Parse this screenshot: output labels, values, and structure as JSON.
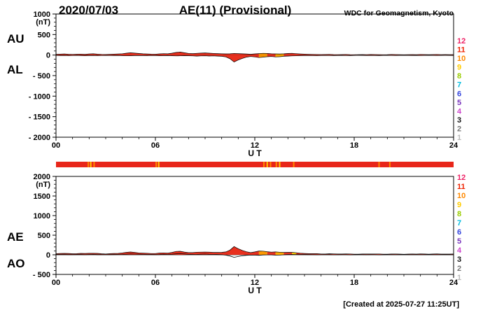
{
  "header": {
    "date": "2020/07/03",
    "title": "AE(11) (Provisional)",
    "source": "WDC for Geomagnetism, Kyoto"
  },
  "footer": {
    "created_note": "[Created at 2025-07-27 11:25UT]"
  },
  "legend": {
    "items": [
      {
        "label": "12",
        "color": "#ee2266"
      },
      {
        "label": "11",
        "color": "#ee2200"
      },
      {
        "label": "10",
        "color": "#ff8800"
      },
      {
        "label": "9",
        "color": "#ffcc00"
      },
      {
        "label": "8",
        "color": "#99cc00"
      },
      {
        "label": "7",
        "color": "#00bbdd"
      },
      {
        "label": "6",
        "color": "#3344dd"
      },
      {
        "label": "5",
        "color": "#7733bb"
      },
      {
        "label": "4",
        "color": "#cc44cc"
      },
      {
        "label": "3",
        "color": "#111111"
      },
      {
        "label": "2",
        "color": "#777777"
      },
      {
        "label": "1",
        "color": "#bbbbbb"
      }
    ]
  },
  "availability_bar": {
    "base_color": "#e8261a",
    "marks": [
      {
        "hour": 1.95,
        "color": "#ff8800"
      },
      {
        "hour": 2.1,
        "color": "#ffcc00"
      },
      {
        "hour": 2.3,
        "color": "#ff8800"
      },
      {
        "hour": 6.05,
        "color": "#ff8800"
      },
      {
        "hour": 6.2,
        "color": "#ffcc00"
      },
      {
        "hour": 12.55,
        "color": "#ff8800"
      },
      {
        "hour": 12.75,
        "color": "#ffcc00"
      },
      {
        "hour": 12.95,
        "color": "#ff8800"
      },
      {
        "hour": 13.3,
        "color": "#ff8800"
      },
      {
        "hour": 13.5,
        "color": "#ffcc00"
      },
      {
        "hour": 14.35,
        "color": "#ff8800"
      },
      {
        "hour": 19.5,
        "color": "#ff8800"
      },
      {
        "hour": 20.15,
        "color": "#ff8800"
      }
    ]
  },
  "chart_data": [
    {
      "id": "top-panel",
      "type": "area",
      "left_labels": [
        "AU",
        "AL"
      ],
      "unit": "(nT)",
      "ylim": [
        -2000,
        1000
      ],
      "y_major_step": 500,
      "y_minor_step": 100,
      "yticks": [
        {
          "v": 1000,
          "label": "1000"
        },
        {
          "v": 500,
          "label": "500"
        },
        {
          "v": 0,
          "label": "0"
        },
        {
          "v": -500,
          "label": "- 500"
        },
        {
          "v": -1000,
          "label": "- 1000"
        },
        {
          "v": -1500,
          "label": "- 1500"
        },
        {
          "v": -2000,
          "label": "- 2000"
        }
      ],
      "xlim": [
        0,
        24
      ],
      "xticks": [
        {
          "v": 0,
          "label": "00"
        },
        {
          "v": 6,
          "label": "06"
        },
        {
          "v": 12,
          "label": "12"
        },
        {
          "v": 18,
          "label": "18"
        },
        {
          "v": 24,
          "label": "24"
        }
      ],
      "xlabel": "U T",
      "x_step_hours": 0.25,
      "fill_segments": [
        {
          "from": 12.1,
          "to": 12.7,
          "color": "#ff9900"
        },
        {
          "from": 13.2,
          "to": 13.6,
          "color": "#ffaa00"
        }
      ],
      "series": [
        {
          "name": "AU",
          "type": "area",
          "color": "#e8301e",
          "values": [
            18,
            22,
            26,
            20,
            16,
            20,
            24,
            18,
            26,
            30,
            22,
            16,
            14,
            18,
            22,
            26,
            32,
            45,
            55,
            48,
            38,
            30,
            26,
            22,
            20,
            28,
            34,
            30,
            45,
            65,
            72,
            55,
            40,
            36,
            42,
            48,
            52,
            46,
            40,
            36,
            32,
            28,
            30,
            40,
            35,
            30,
            26,
            20,
            28,
            36,
            42,
            38,
            32,
            28,
            26,
            30,
            38,
            42,
            34,
            26,
            22,
            18,
            16,
            14,
            12,
            14,
            16,
            12,
            10,
            12,
            14,
            10,
            8,
            10,
            12,
            10,
            14,
            12,
            10,
            8,
            10,
            14,
            12,
            10,
            8,
            10,
            12,
            10,
            14,
            12,
            10,
            12,
            14,
            10,
            12,
            10,
            12
          ]
        },
        {
          "name": "AL",
          "type": "area",
          "color": "#e8301e",
          "values": [
            -8,
            -12,
            -10,
            -14,
            -10,
            -8,
            -12,
            -16,
            -12,
            -10,
            -14,
            -10,
            -8,
            -10,
            -12,
            -10,
            -14,
            -18,
            -16,
            -12,
            -10,
            -12,
            -14,
            -10,
            -12,
            -16,
            -14,
            -12,
            -16,
            -20,
            -18,
            -14,
            -16,
            -20,
            -24,
            -20,
            -18,
            -22,
            -20,
            -24,
            -30,
            -45,
            -90,
            -170,
            -120,
            -80,
            -50,
            -35,
            -45,
            -60,
            -50,
            -40,
            -35,
            -45,
            -40,
            -30,
            -25,
            -20,
            -18,
            -15,
            -12,
            -10,
            -12,
            -14,
            -10,
            -8,
            -10,
            -12,
            -10,
            -8,
            -10,
            -12,
            -8,
            -6,
            -8,
            -10,
            -8,
            -10,
            -12,
            -8,
            -6,
            -8,
            -10,
            -8,
            -6,
            -8,
            -10,
            -8,
            -10,
            -8,
            -6,
            -8,
            -10,
            -8,
            -6,
            -8,
            -10
          ]
        }
      ]
    },
    {
      "id": "bottom-panel",
      "type": "area",
      "left_labels": [
        "AE",
        "AO"
      ],
      "unit": "(nT)",
      "ylim": [
        -500,
        2000
      ],
      "y_major_step": 500,
      "y_minor_step": 100,
      "yticks": [
        {
          "v": 2000,
          "label": "2000"
        },
        {
          "v": 1500,
          "label": "1500"
        },
        {
          "v": 1000,
          "label": "1000"
        },
        {
          "v": 500,
          "label": "500"
        },
        {
          "v": 0,
          "label": "0"
        },
        {
          "v": -500,
          "label": "- 500"
        }
      ],
      "xlim": [
        0,
        24
      ],
      "xticks": [
        {
          "v": 0,
          "label": "00"
        },
        {
          "v": 6,
          "label": "06"
        },
        {
          "v": 12,
          "label": "12"
        },
        {
          "v": 18,
          "label": "18"
        },
        {
          "v": 24,
          "label": "24"
        }
      ],
      "xlabel": "U T",
      "x_step_hours": 0.25,
      "fill_segments": [
        {
          "from": 12.1,
          "to": 12.7,
          "color": "#ff9900"
        },
        {
          "from": 13.2,
          "to": 13.6,
          "color": "#ffaa00"
        },
        {
          "from": 14.2,
          "to": 14.5,
          "color": "#ffcc00"
        }
      ],
      "series": [
        {
          "name": "AE",
          "type": "area",
          "color": "#e8301e",
          "values": [
            26,
            34,
            36,
            34,
            26,
            28,
            36,
            34,
            38,
            40,
            36,
            26,
            22,
            28,
            34,
            36,
            46,
            63,
            71,
            60,
            48,
            42,
            40,
            32,
            32,
            44,
            48,
            42,
            61,
            85,
            90,
            69,
            56,
            56,
            66,
            68,
            70,
            68,
            60,
            60,
            62,
            73,
            120,
            210,
            155,
            110,
            76,
            55,
            73,
            96,
            92,
            78,
            67,
            73,
            66,
            60,
            63,
            62,
            52,
            41,
            34,
            28,
            28,
            28,
            22,
            22,
            26,
            24,
            20,
            20,
            24,
            22,
            16,
            16,
            20,
            20,
            22,
            22,
            22,
            16,
            16,
            22,
            22,
            18,
            14,
            18,
            22,
            18,
            24,
            20,
            16,
            20,
            24,
            18,
            18,
            18,
            22
          ]
        },
        {
          "name": "AO",
          "type": "line",
          "color": "#000000",
          "values": [
            5,
            5,
            8,
            3,
            3,
            6,
            6,
            1,
            7,
            10,
            4,
            3,
            3,
            4,
            5,
            8,
            9,
            14,
            20,
            18,
            14,
            9,
            6,
            6,
            4,
            6,
            10,
            9,
            15,
            23,
            27,
            21,
            12,
            8,
            9,
            14,
            17,
            12,
            10,
            6,
            1,
            -9,
            -30,
            -65,
            -43,
            -25,
            -12,
            -8,
            -9,
            -12,
            -4,
            -1,
            -2,
            -9,
            -7,
            0,
            7,
            11,
            8,
            6,
            5,
            4,
            2,
            0,
            1,
            3,
            3,
            0,
            0,
            2,
            2,
            -1,
            0,
            2,
            2,
            0,
            3,
            1,
            -1,
            0,
            2,
            3,
            1,
            1,
            1,
            1,
            1,
            1,
            2,
            2,
            2,
            2,
            2,
            1,
            3,
            1,
            1
          ]
        }
      ]
    }
  ]
}
